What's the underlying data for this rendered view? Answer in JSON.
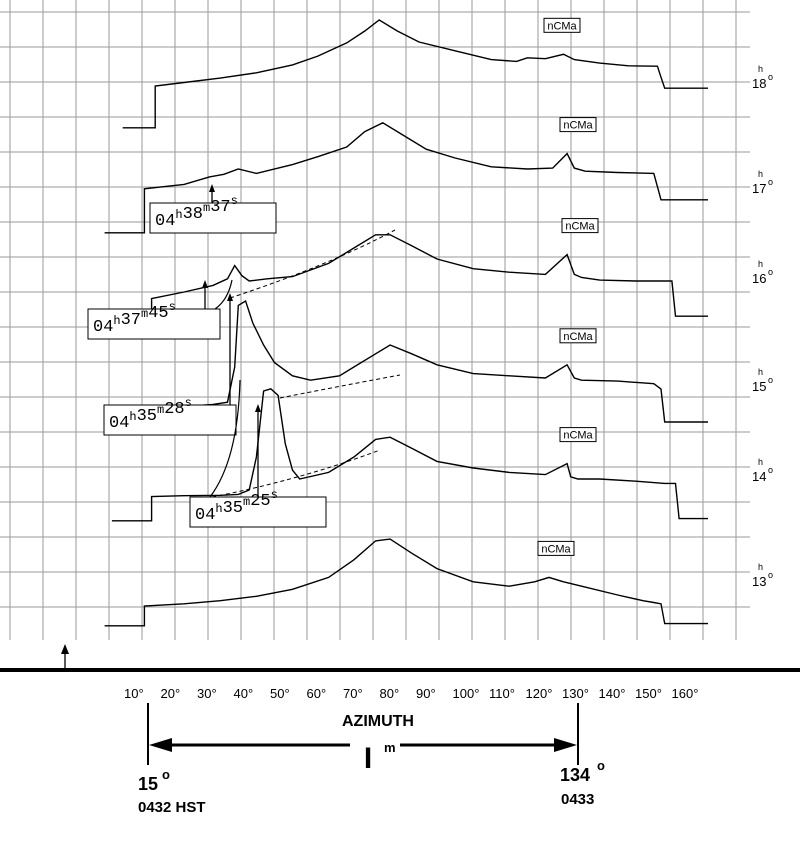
{
  "chart_data": {
    "type": "line",
    "xlabel": "AZIMUTH",
    "x_ticks": [
      "10°",
      "20°",
      "30°",
      "40°",
      "50°",
      "60°",
      "70°",
      "80°",
      "90°",
      "100°",
      "110°",
      "120°",
      "130°",
      "140°",
      "150°",
      "160°"
    ],
    "xlim": [
      10,
      160
    ],
    "scan_marker": {
      "label": "I",
      "label_sup": "m",
      "start": {
        "azimuth": "15",
        "azimuth_sup": "o",
        "time": "0432 HST"
      },
      "end": {
        "azimuth": "134",
        "azimuth_sup": "o",
        "time": "0433"
      }
    },
    "series": [
      {
        "name": "18",
        "hour_label": "h",
        "deg_label": "o",
        "marker_label": "nCMa",
        "x": [
          8,
          17,
          17,
          25,
          35,
          45,
          55,
          62,
          70,
          75,
          79,
          84,
          90,
          100,
          110,
          117,
          120,
          125,
          130,
          133,
          140,
          148,
          156,
          157,
          158,
          170
        ],
        "y": [
          0.05,
          0.05,
          1.0,
          1.08,
          1.18,
          1.3,
          1.48,
          1.68,
          1.98,
          2.25,
          2.5,
          2.25,
          2.0,
          1.8,
          1.6,
          1.56,
          1.64,
          1.62,
          1.72,
          1.6,
          1.52,
          1.46,
          1.45,
          1.2,
          0.95,
          0.95
        ]
      },
      {
        "name": "17",
        "hour_label": "h",
        "deg_label": "o",
        "marker_label": "nCMa",
        "x": [
          3,
          14,
          14,
          25,
          32,
          36,
          40,
          45,
          55,
          62,
          70,
          75,
          80,
          86,
          92,
          100,
          110,
          120,
          127,
          131,
          133,
          136,
          145,
          155,
          156,
          157,
          170
        ],
        "y": [
          0.05,
          0.05,
          1.05,
          1.15,
          1.32,
          1.38,
          1.5,
          1.4,
          1.6,
          1.78,
          2.0,
          2.35,
          2.55,
          2.25,
          1.95,
          1.75,
          1.55,
          1.5,
          1.52,
          1.85,
          1.52,
          1.45,
          1.42,
          1.4,
          1.1,
          0.8,
          0.8
        ]
      },
      {
        "name": "16",
        "hour_label": "h",
        "deg_label": "o",
        "marker_label": "nCMa",
        "x": [
          5,
          16,
          16,
          25,
          33,
          37,
          39,
          41,
          43,
          48,
          55,
          65,
          72,
          78,
          82,
          88,
          95,
          105,
          115,
          125,
          131,
          133,
          135,
          140,
          150,
          160,
          161,
          170
        ],
        "y": [
          0.05,
          0.05,
          0.6,
          0.75,
          0.9,
          1.05,
          1.35,
          1.12,
          1.0,
          1.05,
          1.1,
          1.4,
          1.75,
          2.05,
          2.05,
          1.8,
          1.5,
          1.28,
          1.2,
          1.15,
          1.6,
          1.15,
          1.08,
          1.02,
          1.0,
          1.0,
          0.2,
          0.2
        ]
      },
      {
        "name": "15",
        "hour_label": "h",
        "deg_label": "o",
        "marker_label": "nCMa",
        "x": [
          5,
          15,
          15,
          22,
          28,
          33,
          37,
          39,
          40,
          42,
          44,
          47,
          50,
          55,
          60,
          68,
          72,
          78,
          82,
          88,
          95,
          105,
          115,
          125,
          131,
          133,
          135,
          145,
          155,
          157,
          158,
          170
        ],
        "y": [
          0.05,
          0.05,
          0.55,
          0.6,
          0.62,
          0.65,
          0.7,
          1.5,
          2.9,
          3.0,
          2.5,
          2.0,
          1.6,
          1.3,
          1.2,
          1.3,
          1.5,
          1.8,
          2.0,
          1.8,
          1.55,
          1.35,
          1.3,
          1.25,
          1.55,
          1.25,
          1.2,
          1.18,
          1.12,
          1.0,
          0.25,
          0.25
        ]
      },
      {
        "name": "14",
        "hour_label": "h",
        "deg_label": "o",
        "marker_label": "nCMa",
        "x": [
          5,
          16,
          16,
          25,
          35,
          40,
          43,
          45,
          47,
          49,
          51,
          53,
          55,
          57,
          65,
          72,
          78,
          82,
          88,
          95,
          105,
          115,
          125,
          131,
          132,
          134,
          140,
          150,
          158,
          161,
          162,
          170
        ],
        "y": [
          0.05,
          0.05,
          0.6,
          0.62,
          0.63,
          0.65,
          0.75,
          1.5,
          3.0,
          3.05,
          2.9,
          1.8,
          1.2,
          1.0,
          1.15,
          1.5,
          1.9,
          1.95,
          1.7,
          1.4,
          1.25,
          1.15,
          1.1,
          1.35,
          1.05,
          1.0,
          1.0,
          0.95,
          0.9,
          0.9,
          0.1,
          0.1
        ]
      },
      {
        "name": "13",
        "hour_label": "h",
        "deg_label": "o",
        "marker_label": "nCMa",
        "x": [
          3,
          14,
          14,
          25,
          35,
          45,
          55,
          65,
          72,
          78,
          82,
          88,
          95,
          105,
          115,
          122,
          126,
          130,
          135,
          145,
          152,
          155,
          157,
          158,
          170
        ],
        "y": [
          0.05,
          0.05,
          0.5,
          0.55,
          0.62,
          0.72,
          0.88,
          1.15,
          1.55,
          1.98,
          2.02,
          1.7,
          1.35,
          1.05,
          0.95,
          1.05,
          1.15,
          1.05,
          0.95,
          0.75,
          0.62,
          0.58,
          0.55,
          0.1,
          0.1
        ]
      }
    ],
    "annotations": [
      {
        "time": {
          "hh": "04",
          "h": "h",
          "mm": "38",
          "m": "m",
          "ss": "37",
          "s": "s"
        }
      },
      {
        "time": {
          "hh": "04",
          "h": "h",
          "mm": "37",
          "m": "m",
          "ss": "45",
          "s": "s"
        }
      },
      {
        "time": {
          "hh": "04",
          "h": "h",
          "mm": "35",
          "m": "m",
          "ss": "28",
          "s": "s"
        }
      },
      {
        "time": {
          "hh": "04",
          "h": "h",
          "mm": "35",
          "m": "m",
          "ss": "25",
          "s": "s"
        }
      }
    ],
    "grid": true,
    "legend": "none"
  }
}
